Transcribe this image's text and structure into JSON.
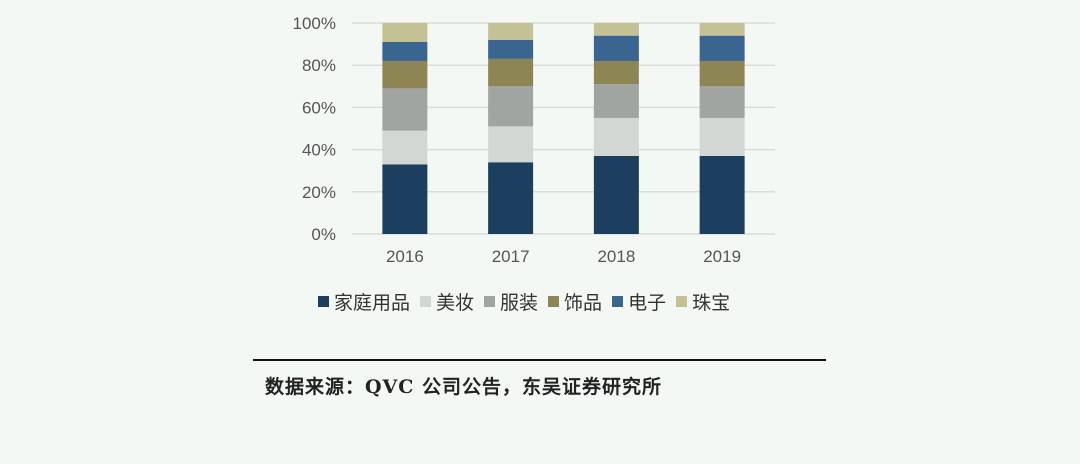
{
  "chart_data": {
    "type": "bar",
    "stacked": true,
    "categories": [
      "2016",
      "2017",
      "2018",
      "2019"
    ],
    "y_ticks": [
      "0%",
      "20%",
      "40%",
      "60%",
      "80%",
      "100%"
    ],
    "ylim": [
      0,
      100
    ],
    "grid": true,
    "legend_position": "bottom",
    "series": [
      {
        "name": "家庭用品",
        "color": "#1c3f5f",
        "values": [
          33,
          34,
          37,
          37
        ]
      },
      {
        "name": "美妆",
        "color": "#d3d7d4",
        "values": [
          16,
          17,
          18,
          18
        ]
      },
      {
        "name": "服装",
        "color": "#a1a5a2",
        "values": [
          20,
          19,
          16,
          15
        ]
      },
      {
        "name": "饰品",
        "color": "#8d8654",
        "values": [
          13,
          13,
          11,
          12
        ]
      },
      {
        "name": "电子",
        "color": "#3a6591",
        "values": [
          9,
          9,
          12,
          12
        ]
      },
      {
        "name": "珠宝",
        "color": "#c4c194",
        "values": [
          9,
          8,
          6,
          6
        ]
      }
    ]
  },
  "source": "数据来源：QVC 公司公告，东吴证券研究所"
}
